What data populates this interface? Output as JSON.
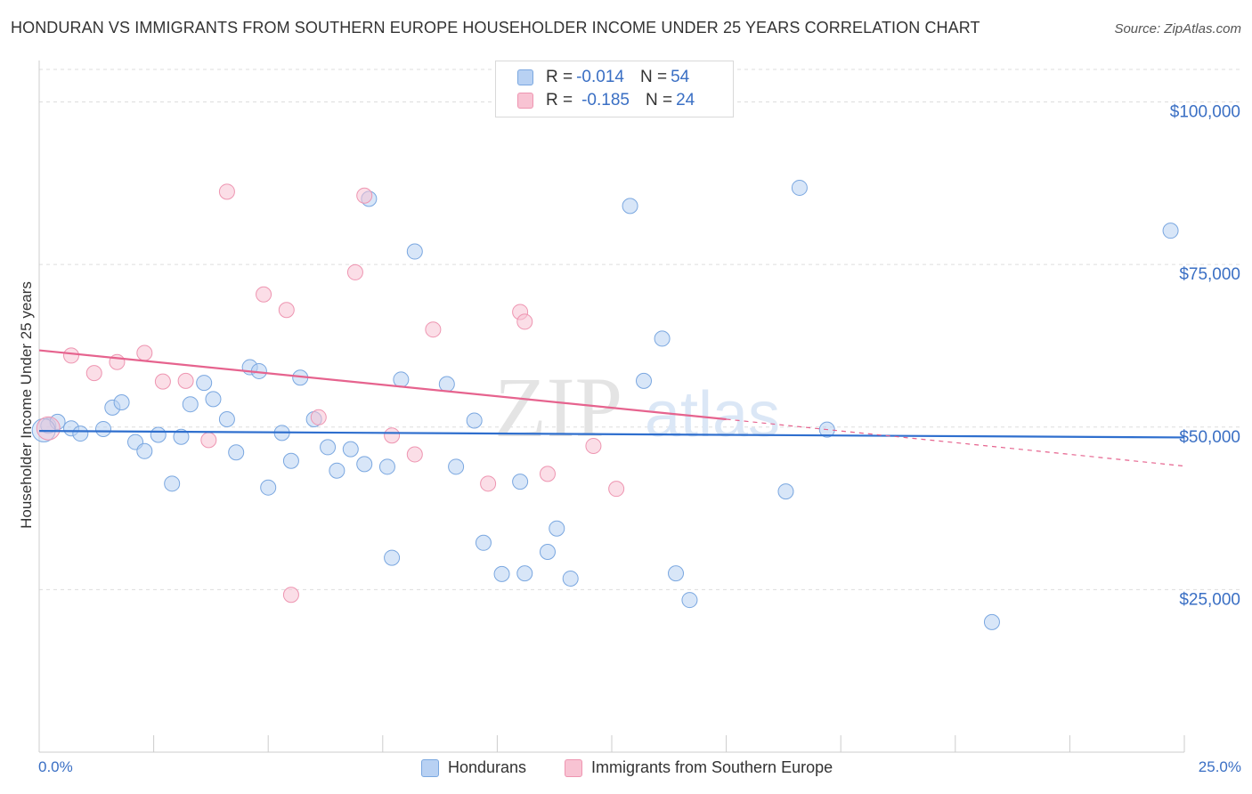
{
  "title": "HONDURAN VS IMMIGRANTS FROM SOUTHERN EUROPE HOUSEHOLDER INCOME UNDER 25 YEARS CORRELATION CHART",
  "source": "Source: ZipAtlas.com",
  "watermark": {
    "zip": "ZIP",
    "atlas": "atlas"
  },
  "legend": {
    "rows": [
      {
        "r_label": "R = ",
        "r_value": "-0.014",
        "n_label": "N = ",
        "n_value": "54"
      },
      {
        "r_label": "R = ",
        "r_value": "-0.185",
        "n_label": "N = ",
        "n_value": "24"
      }
    ]
  },
  "bottom_legend": {
    "series1": "Hondurans",
    "series2": "Immigrants from Southern Europe"
  },
  "colors": {
    "blue_fill": "#b8d1f3",
    "blue_stroke": "#7aa7e0",
    "blue_line": "#2f6fce",
    "pink_fill": "#f8c3d3",
    "pink_stroke": "#ee95b1",
    "pink_line": "#e6638e",
    "label_blue": "#3a6fc4",
    "grid": "#dddddd"
  },
  "chart_data": {
    "type": "scatter",
    "title": "HONDURAN VS IMMIGRANTS FROM SOUTHERN EUROPE HOUSEHOLDER INCOME UNDER 25 YEARS CORRELATION CHART",
    "xlabel": "",
    "ylabel": "Householder Income Under 25 years",
    "xlim": [
      0,
      25
    ],
    "ylim": [
      0,
      105000
    ],
    "x_tick_labels": [
      "0.0%",
      "25.0%"
    ],
    "y_ticks": [
      25000,
      50000,
      75000,
      100000
    ],
    "y_tick_labels": [
      "$25,000",
      "$50,000",
      "$75,000",
      "$100,000"
    ],
    "grid": true,
    "legend_position": "top-center",
    "series": [
      {
        "name": "Hondurans",
        "color": "#b8d1f3",
        "points": [
          [
            0.2,
            50200
          ],
          [
            0.4,
            50800
          ],
          [
            0.7,
            49800
          ],
          [
            0.9,
            49000
          ],
          [
            1.4,
            49700
          ],
          [
            1.6,
            53000
          ],
          [
            1.8,
            53800
          ],
          [
            2.1,
            47700
          ],
          [
            2.3,
            46300
          ],
          [
            2.6,
            48800
          ],
          [
            2.9,
            41300
          ],
          [
            3.1,
            48500
          ],
          [
            3.3,
            53500
          ],
          [
            3.6,
            56800
          ],
          [
            3.8,
            54300
          ],
          [
            4.1,
            51200
          ],
          [
            4.3,
            46100
          ],
          [
            4.6,
            59200
          ],
          [
            4.8,
            58600
          ],
          [
            5.0,
            40700
          ],
          [
            5.3,
            49100
          ],
          [
            5.5,
            44800
          ],
          [
            5.7,
            57600
          ],
          [
            6.0,
            51200
          ],
          [
            6.3,
            46900
          ],
          [
            6.5,
            43300
          ],
          [
            6.8,
            46600
          ],
          [
            7.1,
            44300
          ],
          [
            7.2,
            85100
          ],
          [
            7.6,
            43900
          ],
          [
            7.7,
            29900
          ],
          [
            7.9,
            57300
          ],
          [
            8.2,
            77000
          ],
          [
            8.9,
            56600
          ],
          [
            9.1,
            43900
          ],
          [
            9.5,
            51000
          ],
          [
            9.7,
            32200
          ],
          [
            10.1,
            27400
          ],
          [
            10.5,
            41600
          ],
          [
            10.6,
            27500
          ],
          [
            11.1,
            30800
          ],
          [
            11.3,
            34400
          ],
          [
            11.6,
            26700
          ],
          [
            12.9,
            84000
          ],
          [
            13.2,
            57100
          ],
          [
            13.6,
            63600
          ],
          [
            13.9,
            27500
          ],
          [
            14.2,
            23400
          ],
          [
            16.3,
            40100
          ],
          [
            16.6,
            86800
          ],
          [
            17.2,
            49600
          ],
          [
            20.8,
            20000
          ],
          [
            24.7,
            80200
          ],
          [
            0.1,
            49500
          ]
        ]
      },
      {
        "name": "Immigrants from Southern Europe",
        "color": "#f8c3d3",
        "points": [
          [
            0.2,
            49800
          ],
          [
            0.7,
            61000
          ],
          [
            1.2,
            58300
          ],
          [
            1.7,
            60000
          ],
          [
            2.3,
            61400
          ],
          [
            2.7,
            57000
          ],
          [
            3.2,
            57100
          ],
          [
            3.7,
            48000
          ],
          [
            4.1,
            86200
          ],
          [
            4.9,
            70400
          ],
          [
            5.4,
            68000
          ],
          [
            5.5,
            24200
          ],
          [
            6.1,
            51500
          ],
          [
            6.9,
            73800
          ],
          [
            7.1,
            85600
          ],
          [
            7.7,
            48700
          ],
          [
            8.2,
            45800
          ],
          [
            8.6,
            65000
          ],
          [
            9.8,
            41300
          ],
          [
            10.5,
            67700
          ],
          [
            10.6,
            66200
          ],
          [
            11.1,
            42800
          ],
          [
            12.1,
            47100
          ],
          [
            12.6,
            40500
          ]
        ]
      }
    ],
    "trendlines": [
      {
        "series": "Hondurans",
        "x": [
          0,
          25
        ],
        "y": [
          49400,
          48400
        ]
      },
      {
        "series": "Immigrants from Southern Europe",
        "x": [
          0,
          15
        ],
        "y": [
          61800,
          51200
        ],
        "dashed_extension_to": [
          25,
          44000
        ]
      }
    ]
  }
}
